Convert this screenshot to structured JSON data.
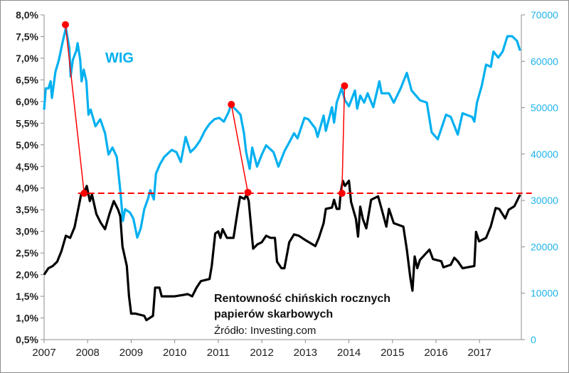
{
  "chart_data": {
    "type": "line",
    "title": "",
    "annotation_title_line1": "Rentowność chińskich rocznych",
    "annotation_title_line2": "papierów skarbowych",
    "source": "Źródło: Investing.com",
    "series_label": "WIG",
    "xlim": [
      2007,
      2017.96
    ],
    "x_ticks": [
      "2007",
      "2008",
      "2009",
      "2010",
      "2011",
      "2012",
      "2013",
      "2014",
      "2015",
      "2016",
      "2017"
    ],
    "y_left": {
      "lim": [
        0.5,
        8.0
      ],
      "ticks": [
        "0,5%",
        "1,0%",
        "1,5%",
        "2,0%",
        "2,5%",
        "3,0%",
        "3,5%",
        "4,0%",
        "4,5%",
        "5,0%",
        "5,5%",
        "6,0%",
        "6,5%",
        "7,0%",
        "7,5%",
        "8,0%"
      ]
    },
    "y_right": {
      "lim": [
        0,
        70000
      ],
      "ticks": [
        "0",
        "10000",
        "20000",
        "30000",
        "40000",
        "50000",
        "60000",
        "70000"
      ]
    },
    "colors": {
      "yield": "#000000",
      "wig": "#00b0f0",
      "marker": "#ff0000",
      "axis_right": "#1fb3ea"
    },
    "series": [
      {
        "name": "Rentowność chińskich rocznych papierów skarbowych",
        "axis": "left",
        "points": [
          [
            2007.0,
            2.0
          ],
          [
            2007.1,
            2.15
          ],
          [
            2007.2,
            2.2
          ],
          [
            2007.3,
            2.3
          ],
          [
            2007.4,
            2.55
          ],
          [
            2007.5,
            2.9
          ],
          [
            2007.6,
            2.85
          ],
          [
            2007.7,
            3.1
          ],
          [
            2007.8,
            3.6
          ],
          [
            2007.85,
            3.85
          ],
          [
            2007.92,
            3.9
          ],
          [
            2007.98,
            4.05
          ],
          [
            2008.05,
            3.7
          ],
          [
            2008.1,
            3.85
          ],
          [
            2008.2,
            3.4
          ],
          [
            2008.3,
            3.2
          ],
          [
            2008.4,
            3.05
          ],
          [
            2008.5,
            3.4
          ],
          [
            2008.6,
            3.7
          ],
          [
            2008.7,
            3.5
          ],
          [
            2008.75,
            3.35
          ],
          [
            2008.8,
            2.65
          ],
          [
            2008.9,
            2.2
          ],
          [
            2008.95,
            1.5
          ],
          [
            2009.0,
            1.1
          ],
          [
            2009.1,
            1.1
          ],
          [
            2009.3,
            1.05
          ],
          [
            2009.35,
            0.95
          ],
          [
            2009.5,
            1.05
          ],
          [
            2009.55,
            1.7
          ],
          [
            2009.65,
            1.7
          ],
          [
            2009.7,
            1.5
          ],
          [
            2010.0,
            1.5
          ],
          [
            2010.3,
            1.55
          ],
          [
            2010.4,
            1.5
          ],
          [
            2010.5,
            1.7
          ],
          [
            2010.6,
            1.85
          ],
          [
            2010.8,
            1.9
          ],
          [
            2010.85,
            2.2
          ],
          [
            2010.93,
            2.95
          ],
          [
            2011.0,
            3.0
          ],
          [
            2011.05,
            2.85
          ],
          [
            2011.1,
            3.05
          ],
          [
            2011.2,
            2.85
          ],
          [
            2011.35,
            2.85
          ],
          [
            2011.45,
            3.5
          ],
          [
            2011.5,
            3.8
          ],
          [
            2011.6,
            3.75
          ],
          [
            2011.65,
            3.85
          ],
          [
            2011.7,
            3.7
          ],
          [
            2011.75,
            3.15
          ],
          [
            2011.8,
            2.6
          ],
          [
            2011.9,
            2.7
          ],
          [
            2012.0,
            2.75
          ],
          [
            2012.1,
            2.9
          ],
          [
            2012.2,
            2.85
          ],
          [
            2012.3,
            2.85
          ],
          [
            2012.35,
            2.3
          ],
          [
            2012.45,
            2.15
          ],
          [
            2012.52,
            2.15
          ],
          [
            2012.63,
            2.75
          ],
          [
            2012.74,
            2.93
          ],
          [
            2012.85,
            2.9
          ],
          [
            2013.0,
            2.8
          ],
          [
            2013.23,
            2.66
          ],
          [
            2013.31,
            2.85
          ],
          [
            2013.42,
            3.19
          ],
          [
            2013.47,
            3.52
          ],
          [
            2013.61,
            3.55
          ],
          [
            2013.66,
            3.73
          ],
          [
            2013.72,
            3.52
          ],
          [
            2013.78,
            3.52
          ],
          [
            2013.81,
            3.88
          ],
          [
            2013.86,
            4.17
          ],
          [
            2013.91,
            4.05
          ],
          [
            2014.0,
            4.17
          ],
          [
            2014.05,
            3.68
          ],
          [
            2014.16,
            3.29
          ],
          [
            2014.21,
            2.88
          ],
          [
            2014.26,
            3.57
          ],
          [
            2014.32,
            3.29
          ],
          [
            2014.4,
            3.07
          ],
          [
            2014.51,
            3.73
          ],
          [
            2014.67,
            3.81
          ],
          [
            2014.75,
            3.52
          ],
          [
            2014.86,
            3.11
          ],
          [
            2014.92,
            3.52
          ],
          [
            2015.03,
            3.19
          ],
          [
            2015.25,
            3.11
          ],
          [
            2015.33,
            2.58
          ],
          [
            2015.41,
            1.93
          ],
          [
            2015.46,
            1.63
          ],
          [
            2015.51,
            2.42
          ],
          [
            2015.57,
            2.15
          ],
          [
            2015.63,
            2.34
          ],
          [
            2015.85,
            2.58
          ],
          [
            2015.93,
            2.36
          ],
          [
            2016.12,
            2.31
          ],
          [
            2016.17,
            2.17
          ],
          [
            2016.34,
            2.23
          ],
          [
            2016.42,
            2.39
          ],
          [
            2016.5,
            2.31
          ],
          [
            2016.61,
            2.15
          ],
          [
            2016.88,
            2.2
          ],
          [
            2016.92,
            2.99
          ],
          [
            2016.99,
            2.77
          ],
          [
            2017.15,
            2.85
          ],
          [
            2017.26,
            3.12
          ],
          [
            2017.37,
            3.54
          ],
          [
            2017.45,
            3.52
          ],
          [
            2017.59,
            3.3
          ],
          [
            2017.67,
            3.5
          ],
          [
            2017.8,
            3.58
          ],
          [
            2017.93,
            3.85
          ]
        ]
      },
      {
        "name": "WIG",
        "axis": "right",
        "points": [
          [
            2007.0,
            49570
          ],
          [
            2007.04,
            54160
          ],
          [
            2007.1,
            54160
          ],
          [
            2007.15,
            55700
          ],
          [
            2007.18,
            52100
          ],
          [
            2007.26,
            57700
          ],
          [
            2007.34,
            60300
          ],
          [
            2007.42,
            63900
          ],
          [
            2007.5,
            67200
          ],
          [
            2007.58,
            62800
          ],
          [
            2007.61,
            56700
          ],
          [
            2007.66,
            60300
          ],
          [
            2007.74,
            62300
          ],
          [
            2007.77,
            63900
          ],
          [
            2007.83,
            60300
          ],
          [
            2007.86,
            55700
          ],
          [
            2007.91,
            58200
          ],
          [
            2007.97,
            55700
          ],
          [
            2008.02,
            48500
          ],
          [
            2008.07,
            49600
          ],
          [
            2008.18,
            46000
          ],
          [
            2008.29,
            47500
          ],
          [
            2008.4,
            44500
          ],
          [
            2008.48,
            39900
          ],
          [
            2008.57,
            41400
          ],
          [
            2008.67,
            39400
          ],
          [
            2008.75,
            32200
          ],
          [
            2008.81,
            25600
          ],
          [
            2008.86,
            28100
          ],
          [
            2008.97,
            27400
          ],
          [
            2009.05,
            26100
          ],
          [
            2009.14,
            22000
          ],
          [
            2009.22,
            24000
          ],
          [
            2009.3,
            28100
          ],
          [
            2009.38,
            30200
          ],
          [
            2009.44,
            32200
          ],
          [
            2009.52,
            30200
          ],
          [
            2009.57,
            35800
          ],
          [
            2009.66,
            37800
          ],
          [
            2009.76,
            39400
          ],
          [
            2009.93,
            40900
          ],
          [
            2010.04,
            40400
          ],
          [
            2010.14,
            38300
          ],
          [
            2010.25,
            43700
          ],
          [
            2010.36,
            40400
          ],
          [
            2010.47,
            41400
          ],
          [
            2010.58,
            42900
          ],
          [
            2010.69,
            45000
          ],
          [
            2010.8,
            46500
          ],
          [
            2010.91,
            47500
          ],
          [
            2011.02,
            47800
          ],
          [
            2011.13,
            47000
          ],
          [
            2011.24,
            49100
          ],
          [
            2011.29,
            50600
          ],
          [
            2011.4,
            49600
          ],
          [
            2011.51,
            48500
          ],
          [
            2011.59,
            44500
          ],
          [
            2011.64,
            40400
          ],
          [
            2011.72,
            36800
          ],
          [
            2011.78,
            41400
          ],
          [
            2011.89,
            37300
          ],
          [
            2012.0,
            39900
          ],
          [
            2012.1,
            41900
          ],
          [
            2012.27,
            40400
          ],
          [
            2012.38,
            37300
          ],
          [
            2012.52,
            40600
          ],
          [
            2012.68,
            43400
          ],
          [
            2012.74,
            44500
          ],
          [
            2012.82,
            43400
          ],
          [
            2012.98,
            47800
          ],
          [
            2013.07,
            47500
          ],
          [
            2013.23,
            45500
          ],
          [
            2013.28,
            43700
          ],
          [
            2013.42,
            48300
          ],
          [
            2013.47,
            45000
          ],
          [
            2013.61,
            50100
          ],
          [
            2013.66,
            46800
          ],
          [
            2013.72,
            51100
          ],
          [
            2013.83,
            54200
          ],
          [
            2013.91,
            51600
          ],
          [
            2014.0,
            50300
          ],
          [
            2014.14,
            53700
          ],
          [
            2014.19,
            49800
          ],
          [
            2014.26,
            52600
          ],
          [
            2014.35,
            51100
          ],
          [
            2014.43,
            53100
          ],
          [
            2014.56,
            50100
          ],
          [
            2014.7,
            55700
          ],
          [
            2014.75,
            53100
          ],
          [
            2014.92,
            53100
          ],
          [
            2015.03,
            51100
          ],
          [
            2015.19,
            54200
          ],
          [
            2015.33,
            57500
          ],
          [
            2015.44,
            53700
          ],
          [
            2015.63,
            51600
          ],
          [
            2015.79,
            51100
          ],
          [
            2015.9,
            44700
          ],
          [
            2016.04,
            43200
          ],
          [
            2016.23,
            48500
          ],
          [
            2016.34,
            48000
          ],
          [
            2016.5,
            44200
          ],
          [
            2016.61,
            48800
          ],
          [
            2016.83,
            48000
          ],
          [
            2016.88,
            47000
          ],
          [
            2016.94,
            51100
          ],
          [
            2017.05,
            54700
          ],
          [
            2017.15,
            59300
          ],
          [
            2017.26,
            58800
          ],
          [
            2017.32,
            62100
          ],
          [
            2017.43,
            60800
          ],
          [
            2017.53,
            62100
          ],
          [
            2017.64,
            65400
          ],
          [
            2017.75,
            65400
          ],
          [
            2017.86,
            64400
          ],
          [
            2017.93,
            62300
          ]
        ]
      }
    ],
    "threshold": {
      "value": 3.88,
      "axis": "left",
      "x_from": 2007.78,
      "x_to": 2018.2
    },
    "connectors": [
      {
        "from": {
          "x": 2007.49,
          "wig": 67900
        },
        "to": {
          "x": 2007.92,
          "yield": 3.88
        }
      },
      {
        "from": {
          "x": 2011.3,
          "wig": 50700
        },
        "to": {
          "x": 2011.68,
          "yield": 3.9
        }
      },
      {
        "from": {
          "x": 2013.9,
          "wig": 54700
        },
        "to": {
          "x": 2013.84,
          "yield": 3.88
        }
      }
    ]
  }
}
